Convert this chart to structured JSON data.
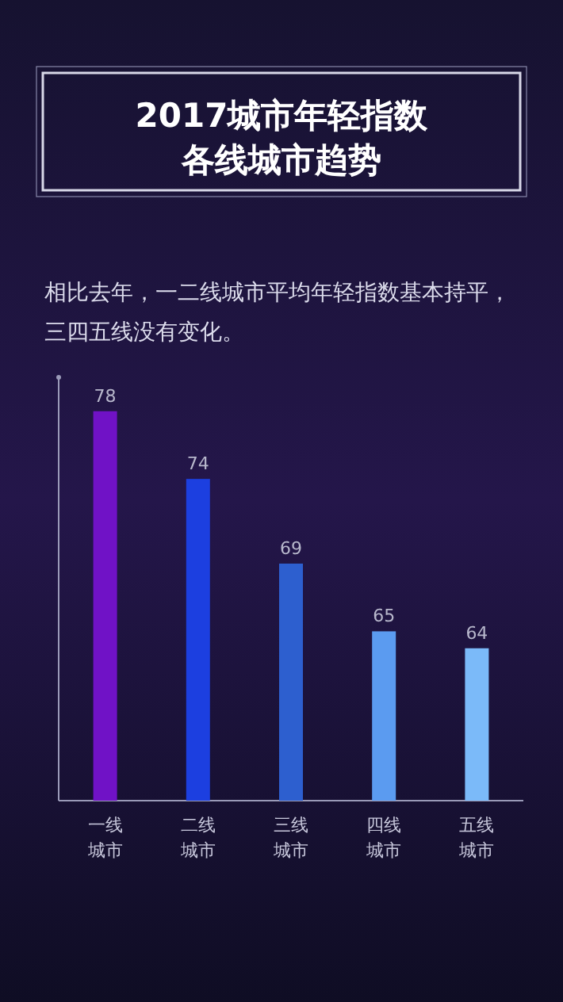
{
  "chart_data": {
    "type": "bar",
    "title": "2017城市年轻指数各线城市趋势",
    "subtitle": "相比去年，一二线城市平均年轻指数基本持平，三四五线没有变化。",
    "categories": [
      "一线城市",
      "二线城市",
      "三线城市",
      "四线城市",
      "五线城市"
    ],
    "values": [
      78,
      74,
      69,
      65,
      64
    ],
    "colors": [
      "#7012c6",
      "#1c3fe0",
      "#2d5fcf",
      "#5b9bf0",
      "#7bbaf9"
    ],
    "ylim": [
      55,
      80
    ],
    "data_labels": true
  }
}
